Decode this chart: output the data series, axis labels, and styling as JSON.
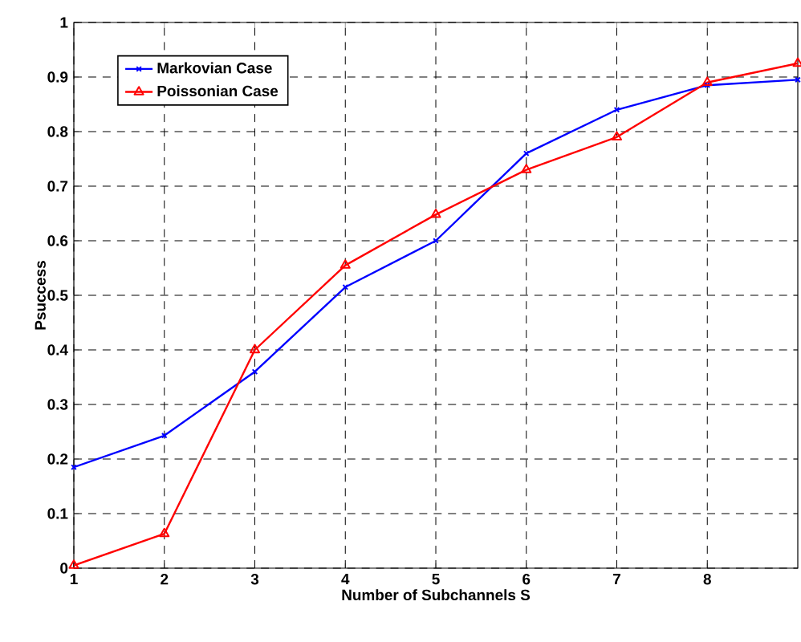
{
  "chart_data": {
    "type": "line",
    "xlabel": "Number of Subchannels S",
    "ylabel": "Psuccess",
    "x": [
      1,
      2,
      3,
      4,
      5,
      6,
      7,
      8,
      9
    ],
    "xlim": [
      1,
      9
    ],
    "xticks": [
      1,
      2,
      3,
      4,
      5,
      6,
      7,
      8
    ],
    "ylim": [
      0,
      1
    ],
    "yticks": [
      0,
      0.1,
      0.2,
      0.3,
      0.4,
      0.5,
      0.6,
      0.7,
      0.8,
      0.9,
      1
    ],
    "grid": true,
    "legend": "top left",
    "line_style": "solid",
    "series": [
      {
        "name": "Markovian Case",
        "color": "#0000ff",
        "marker": "cross",
        "values": [
          0.185,
          0.243,
          0.36,
          0.515,
          0.6,
          0.76,
          0.84,
          0.885,
          0.895
        ]
      },
      {
        "name": "Poissonian Case",
        "color": "#ff0000",
        "marker": "triangle",
        "values": [
          0.005,
          0.063,
          0.4,
          0.555,
          0.648,
          0.73,
          0.79,
          0.89,
          0.925
        ]
      }
    ]
  }
}
